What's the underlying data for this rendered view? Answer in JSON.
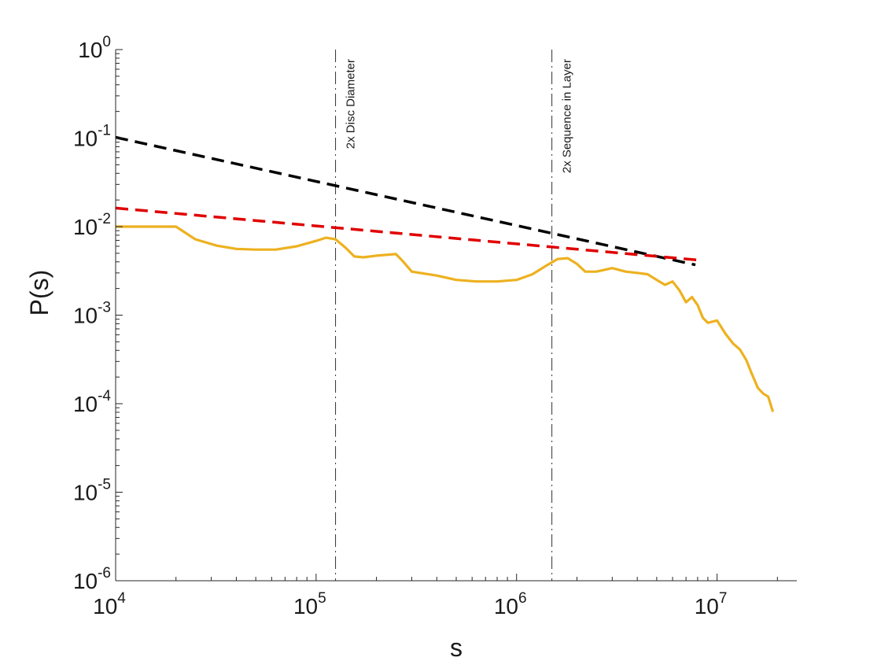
{
  "chart_data": {
    "type": "line",
    "xscale": "log",
    "yscale": "log",
    "xlabel": "s",
    "ylabel": "P(s)",
    "xlim": [
      10000,
      25000000
    ],
    "ylim": [
      1e-06,
      1
    ],
    "grid": false,
    "x_ticks": [
      {
        "value": 10000,
        "base": "10",
        "exp": "4"
      },
      {
        "value": 100000,
        "base": "10",
        "exp": "5"
      },
      {
        "value": 1000000,
        "base": "10",
        "exp": "6"
      },
      {
        "value": 10000000,
        "base": "10",
        "exp": "7"
      }
    ],
    "y_ticks": [
      {
        "value": 1,
        "base": "10",
        "exp": "0"
      },
      {
        "value": 0.1,
        "base": "10",
        "exp": "-1"
      },
      {
        "value": 0.01,
        "base": "10",
        "exp": "-2"
      },
      {
        "value": 0.001,
        "base": "10",
        "exp": "-3"
      },
      {
        "value": 0.0001,
        "base": "10",
        "exp": "-4"
      },
      {
        "value": 1e-05,
        "base": "10",
        "exp": "-5"
      },
      {
        "value": 1e-06,
        "base": "10",
        "exp": "-6"
      }
    ],
    "annotations": [
      {
        "x": 125000,
        "label": "2x Disc Diameter"
      },
      {
        "x": 1500000,
        "label": "2x Sequence in Layer"
      }
    ],
    "series": [
      {
        "style": "solid",
        "color": "#EDB120",
        "points": [
          [
            10000,
            0.01
          ],
          [
            20000,
            0.01
          ],
          [
            25000,
            0.0072
          ],
          [
            32000,
            0.0061
          ],
          [
            40000,
            0.0056
          ],
          [
            50000,
            0.0055
          ],
          [
            63000,
            0.0055
          ],
          [
            80000,
            0.006
          ],
          [
            100000,
            0.0069
          ],
          [
            112000,
            0.0075
          ],
          [
            125000,
            0.0072
          ],
          [
            140000,
            0.0058
          ],
          [
            155000,
            0.0046
          ],
          [
            172000,
            0.0045
          ],
          [
            200000,
            0.0047
          ],
          [
            250000,
            0.0049
          ],
          [
            270000,
            0.0041
          ],
          [
            300000,
            0.0031
          ],
          [
            400000,
            0.0028
          ],
          [
            500000,
            0.0025
          ],
          [
            630000,
            0.0024
          ],
          [
            800000,
            0.0024
          ],
          [
            1000000,
            0.0025
          ],
          [
            1200000,
            0.0029
          ],
          [
            1400000,
            0.0036
          ],
          [
            1600000,
            0.0043
          ],
          [
            1800000,
            0.0044
          ],
          [
            2000000,
            0.0038
          ],
          [
            2200000,
            0.0031
          ],
          [
            2500000,
            0.0031
          ],
          [
            3000000,
            0.0034
          ],
          [
            3500000,
            0.0031
          ],
          [
            4000000,
            0.003
          ],
          [
            4500000,
            0.0029
          ],
          [
            5000000,
            0.0025
          ],
          [
            5500000,
            0.0022
          ],
          [
            6000000,
            0.0024
          ],
          [
            6500000,
            0.0019
          ],
          [
            7000000,
            0.0014
          ],
          [
            7500000,
            0.0016
          ],
          [
            8000000,
            0.0013
          ],
          [
            8500000,
            0.00093
          ],
          [
            9000000,
            0.00082
          ],
          [
            10000000,
            0.00087
          ],
          [
            11000000,
            0.00062
          ],
          [
            12000000,
            0.00048
          ],
          [
            13000000,
            0.00041
          ],
          [
            14000000,
            0.00031
          ],
          [
            15000000,
            0.00021
          ],
          [
            16000000,
            0.00015
          ],
          [
            17000000,
            0.00013
          ],
          [
            18000000,
            0.00012
          ],
          [
            19000000,
            8.1e-05
          ]
        ]
      },
      {
        "style": "dashed",
        "color": "#000000",
        "points": [
          [
            10000,
            0.102
          ],
          [
            7800000,
            0.0037
          ]
        ]
      },
      {
        "style": "dashed",
        "color": "#E00000",
        "points": [
          [
            10000,
            0.0162
          ],
          [
            8000000,
            0.0042
          ]
        ]
      }
    ]
  }
}
